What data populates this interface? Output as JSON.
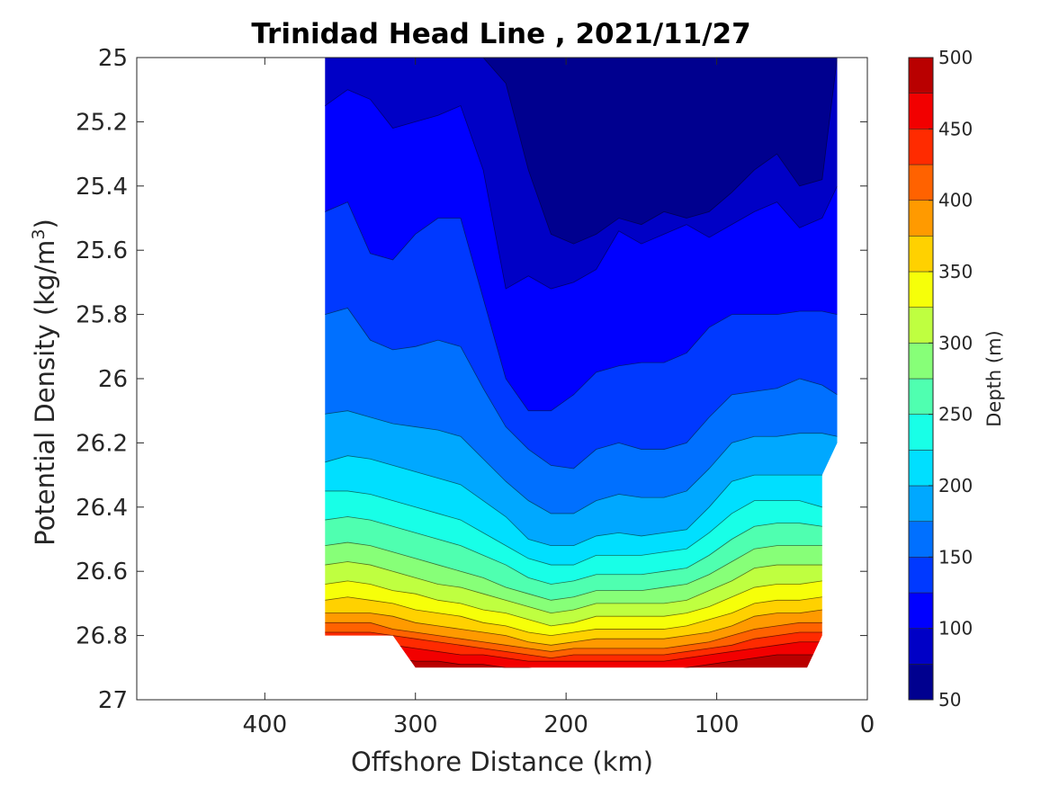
{
  "chart_data": {
    "type": "contour",
    "title": "Trinidad Head Line , 2021/11/27",
    "xlabel": "Offshore Distance (km)",
    "ylabel_main": "Potential Density (kg/m",
    "ylabel_sup": "3",
    "ylabel_close": ")",
    "xlim": [
      485,
      0
    ],
    "ylim": [
      25,
      27
    ],
    "x_reversed": true,
    "y_reversed": true,
    "xticks": [
      400,
      300,
      200,
      100,
      0
    ],
    "xtick_labels": [
      "400",
      "300",
      "200",
      "100",
      "0"
    ],
    "yticks": [
      25,
      25.2,
      25.4,
      25.6,
      25.8,
      26,
      26.2,
      26.4,
      26.6,
      26.8,
      27
    ],
    "ytick_labels": [
      "25",
      "25.2",
      "25.4",
      "25.6",
      "25.8",
      "26",
      "26.2",
      "26.4",
      "26.6",
      "26.8",
      "27"
    ],
    "colorbar": {
      "label": "Depth (m)",
      "range": [
        50,
        500
      ],
      "levels": [
        50,
        75,
        100,
        125,
        150,
        175,
        200,
        225,
        250,
        275,
        300,
        325,
        350,
        375,
        400,
        425,
        450,
        475,
        500
      ],
      "tick_values": [
        50,
        100,
        150,
        200,
        250,
        300,
        350,
        400,
        450,
        500
      ],
      "tick_labels": [
        "50",
        "100",
        "150",
        "200",
        "250",
        "300",
        "350",
        "400",
        "450",
        "500"
      ],
      "colors": [
        "#00008f",
        "#0000c6",
        "#0000ff",
        "#0039ff",
        "#0070ff",
        "#00a8ff",
        "#00dfff",
        "#18ffe7",
        "#4fffb0",
        "#87ff78",
        "#bfff40",
        "#f6ff09",
        "#ffd100",
        "#ff9a00",
        "#ff6200",
        "#ff2b00",
        "#f20000",
        "#b90000"
      ]
    },
    "x_stations": [
      360,
      345,
      330,
      315,
      300,
      285,
      270,
      255,
      240,
      225,
      210,
      195,
      180,
      165,
      150,
      135,
      120,
      105,
      90,
      75,
      60,
      45,
      30,
      20
    ],
    "domain_top": {
      "x": [
        360,
        20
      ],
      "y": 25
    },
    "domain_bottom": {
      "x": [
        360,
        315,
        300,
        40,
        30,
        30,
        20
      ],
      "y": [
        26.8,
        26.8,
        26.9,
        26.9,
        26.8,
        26.3,
        26.2
      ]
    },
    "isopleth_depth_levels": [
      75,
      100,
      125,
      150,
      175,
      200,
      225,
      250,
      275,
      300,
      325,
      350,
      375,
      400,
      425,
      450,
      475
    ],
    "isopleths": [
      [
        25.0,
        25.0,
        25.0,
        25.0,
        25.0,
        25.0,
        25.0,
        25.0,
        25.08,
        25.35,
        25.55,
        25.58,
        25.55,
        25.5,
        25.52,
        25.48,
        25.5,
        25.48,
        25.42,
        25.35,
        25.3,
        25.4,
        25.38,
        25.0
      ],
      [
        25.15,
        25.1,
        25.13,
        25.22,
        25.2,
        25.18,
        25.15,
        25.35,
        25.72,
        25.68,
        25.72,
        25.7,
        25.66,
        25.54,
        25.58,
        25.55,
        25.52,
        25.56,
        25.52,
        25.48,
        25.45,
        25.53,
        25.5,
        25.4
      ],
      [
        25.48,
        25.45,
        25.61,
        25.63,
        25.55,
        25.5,
        25.5,
        25.75,
        26.0,
        26.1,
        26.1,
        26.05,
        25.98,
        25.96,
        25.95,
        25.95,
        25.92,
        25.84,
        25.8,
        25.8,
        25.8,
        25.79,
        25.79,
        25.8
      ],
      [
        25.8,
        25.78,
        25.88,
        25.91,
        25.9,
        25.88,
        25.9,
        26.03,
        26.15,
        26.22,
        26.27,
        26.28,
        26.22,
        26.2,
        26.22,
        26.22,
        26.2,
        26.12,
        26.05,
        26.04,
        26.03,
        26.0,
        26.02,
        26.05
      ],
      [
        26.11,
        26.1,
        26.12,
        26.14,
        26.15,
        26.16,
        26.18,
        26.25,
        26.32,
        26.38,
        26.42,
        26.42,
        26.38,
        26.36,
        26.37,
        26.37,
        26.35,
        26.28,
        26.2,
        26.18,
        26.18,
        26.17,
        26.17,
        26.18
      ],
      [
        26.26,
        26.24,
        26.25,
        26.27,
        26.29,
        26.31,
        26.33,
        26.38,
        26.43,
        26.5,
        26.52,
        26.52,
        26.49,
        26.48,
        26.49,
        26.48,
        26.47,
        26.4,
        26.32,
        26.3,
        26.3,
        26.3,
        26.3,
        26.3
      ],
      [
        26.35,
        26.35,
        26.36,
        26.38,
        26.4,
        26.42,
        26.44,
        26.48,
        26.52,
        26.56,
        26.58,
        26.58,
        26.55,
        26.55,
        26.55,
        26.54,
        26.53,
        26.48,
        26.42,
        26.38,
        26.38,
        26.38,
        26.4,
        26.4
      ],
      [
        26.44,
        26.43,
        26.44,
        26.46,
        26.48,
        26.5,
        26.52,
        26.55,
        26.58,
        26.62,
        26.64,
        26.63,
        26.61,
        26.61,
        26.61,
        26.6,
        26.59,
        26.55,
        26.5,
        26.46,
        26.45,
        26.45,
        26.46,
        26.46
      ],
      [
        26.52,
        26.51,
        26.52,
        26.54,
        26.56,
        26.58,
        26.6,
        26.62,
        26.65,
        26.67,
        26.69,
        26.68,
        26.66,
        26.66,
        26.66,
        26.65,
        26.64,
        26.61,
        26.57,
        26.53,
        26.52,
        26.52,
        26.52,
        26.52
      ],
      [
        26.58,
        26.57,
        26.58,
        26.6,
        26.62,
        26.64,
        26.65,
        26.67,
        26.69,
        26.71,
        26.73,
        26.72,
        26.7,
        26.7,
        26.7,
        26.7,
        26.69,
        26.66,
        26.63,
        26.59,
        26.58,
        26.58,
        26.58,
        26.58
      ],
      [
        26.64,
        26.63,
        26.64,
        26.66,
        26.67,
        26.69,
        26.7,
        26.72,
        26.73,
        26.75,
        26.77,
        26.76,
        26.74,
        26.74,
        26.74,
        26.74,
        26.73,
        26.71,
        26.68,
        26.65,
        26.64,
        26.64,
        26.63,
        26.63
      ],
      [
        26.69,
        26.68,
        26.69,
        26.7,
        26.72,
        26.73,
        26.74,
        26.76,
        26.77,
        26.79,
        26.8,
        26.79,
        26.78,
        26.78,
        26.78,
        26.78,
        26.77,
        26.75,
        26.73,
        26.7,
        26.69,
        26.69,
        26.68,
        26.68
      ],
      [
        26.73,
        26.73,
        26.73,
        26.74,
        26.76,
        26.77,
        26.78,
        26.79,
        26.8,
        26.82,
        26.83,
        26.82,
        26.81,
        26.81,
        26.81,
        26.81,
        26.8,
        26.79,
        26.77,
        26.74,
        26.73,
        26.73,
        26.72,
        26.72
      ],
      [
        26.76,
        26.76,
        26.76,
        26.78,
        26.79,
        26.8,
        26.81,
        26.82,
        26.83,
        26.84,
        26.85,
        26.84,
        26.84,
        26.84,
        26.84,
        26.84,
        26.83,
        26.82,
        26.8,
        26.78,
        26.77,
        26.76,
        26.76,
        26.76
      ],
      [
        26.79,
        26.79,
        26.79,
        26.8,
        26.81,
        26.82,
        26.83,
        26.84,
        26.85,
        26.86,
        26.87,
        26.86,
        26.86,
        26.86,
        26.86,
        26.86,
        26.85,
        26.84,
        26.83,
        26.81,
        26.8,
        26.79,
        26.79,
        26.79
      ],
      [
        26.82,
        26.82,
        26.82,
        26.83,
        26.84,
        26.85,
        26.86,
        26.86,
        26.87,
        26.88,
        26.88,
        26.88,
        26.88,
        26.88,
        26.88,
        26.88,
        26.87,
        26.86,
        26.85,
        26.84,
        26.83,
        26.82,
        26.82,
        26.82
      ],
      [
        26.86,
        26.86,
        26.86,
        26.87,
        26.88,
        26.88,
        26.89,
        26.89,
        26.9,
        26.9,
        26.91,
        26.91,
        26.91,
        26.91,
        26.91,
        26.91,
        26.9,
        26.89,
        26.88,
        26.87,
        26.86,
        26.86,
        26.86,
        26.86
      ]
    ]
  }
}
